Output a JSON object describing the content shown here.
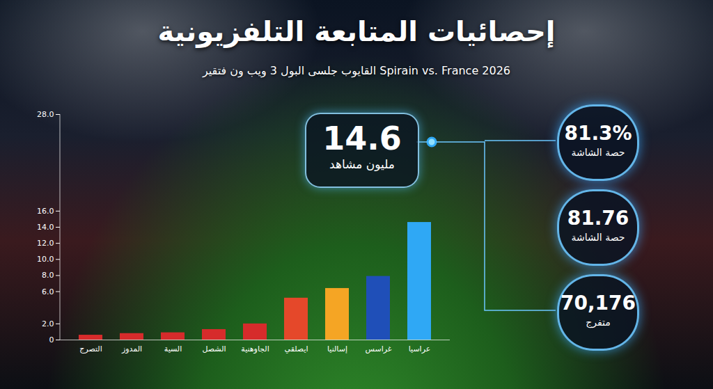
{
  "chart_data": {
    "type": "bar",
    "title": "إحصائيات المتابعة التلفزيونية",
    "subtitle": "Spirain vs. France 2026 القايوب جلسى البول 3 ويب ون فتقير",
    "categories": [
      "التصرج",
      "المدوز",
      "السية",
      "الشصل",
      "الجاوهنية",
      "ايصلقي",
      "إسالنيا",
      "غراسس",
      "عراسيا"
    ],
    "values": [
      0.6,
      0.8,
      0.9,
      1.3,
      2.0,
      5.2,
      6.4,
      7.9,
      14.6
    ],
    "colors": [
      "#d62b2b",
      "#d62b2b",
      "#d62b2b",
      "#d62b2b",
      "#d62b2b",
      "#e5482a",
      "#f5a524",
      "#1f4fb8",
      "#2fa8f5"
    ],
    "ylim": [
      0,
      28
    ],
    "yticks": [
      0,
      {
        "value": 2,
        "label": "2.0"
      },
      {
        "value": 6,
        "label": "6.0"
      },
      {
        "value": 8,
        "label": "8.0"
      },
      {
        "value": 10,
        "label": "10.0"
      },
      {
        "value": 12,
        "label": "12.0"
      },
      {
        "value": 14,
        "label": "14.0"
      },
      {
        "value": 16,
        "label": "16.0"
      },
      {
        "value": 28,
        "label": "28.0"
      }
    ],
    "annotations": [
      {
        "value": "14.6",
        "label": "مليون مشاهد"
      }
    ],
    "stats": [
      {
        "value": "81.3%",
        "label": "حصة الشاشة"
      },
      {
        "value": "81.76",
        "label": "حصة الشاشة"
      },
      {
        "value": "70,176",
        "label": "متفرج"
      }
    ]
  }
}
